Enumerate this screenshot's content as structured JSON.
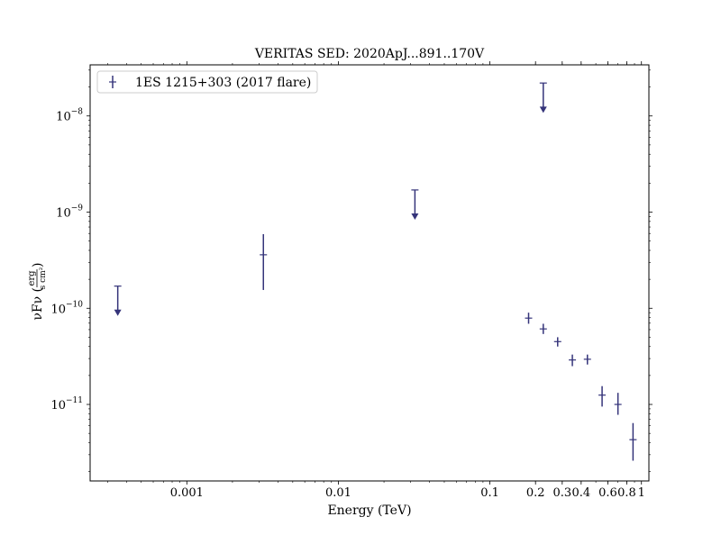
{
  "chart_data": {
    "type": "scatter",
    "title": "VERITAS SED: 2020ApJ...891..170V",
    "xlabel": "Energy (TeV)",
    "ylabel_prefix": "νFν (",
    "ylabel_num": "erg",
    "ylabel_den": "s cm²",
    "ylabel_suffix": ")",
    "xscale": "log",
    "yscale": "log",
    "xlim": [
      0.00023,
      1.12
    ],
    "ylim": [
      1.6e-12,
      3.4e-08
    ],
    "x_ticks": [
      {
        "value": 0.001,
        "label": "0.001"
      },
      {
        "value": 0.01,
        "label": "0.01"
      },
      {
        "value": 0.1,
        "label": "0.1"
      },
      {
        "value": 0.2,
        "label": "0.2"
      },
      {
        "value": 0.3,
        "label": "0.3"
      },
      {
        "value": 0.4,
        "label": "0.4"
      },
      {
        "value": 0.6,
        "label": "0.6"
      },
      {
        "value": 0.8,
        "label": "0.8"
      },
      {
        "value": 1,
        "label": "1"
      }
    ],
    "y_ticks": [
      {
        "value": 1e-11,
        "base": "10",
        "exp": "−11"
      },
      {
        "value": 1e-10,
        "base": "10",
        "exp": "−10"
      },
      {
        "value": 1e-09,
        "base": "10",
        "exp": "−9"
      },
      {
        "value": 1e-08,
        "base": "10",
        "exp": "−8"
      }
    ],
    "grid": false,
    "legend_position": "top-left",
    "series": [
      {
        "name": "1ES 1215+303 (2017 flare)",
        "color": "#35347a",
        "points": [
          {
            "x": 0.00035,
            "y": 1.7e-10,
            "upper_limit": true
          },
          {
            "x": 0.0032,
            "y": 3.6e-10,
            "yerr_low": 1.55e-10,
            "yerr_high": 5.9e-10
          },
          {
            "x": 0.032,
            "y": 1.7e-09,
            "upper_limit": true
          },
          {
            "x": 0.18,
            "y": 7.9e-11,
            "yerr_low": 6.9e-11,
            "yerr_high": 9e-11
          },
          {
            "x": 0.225,
            "y": 6.1e-11,
            "yerr_low": 5.4e-11,
            "yerr_high": 6.9e-11
          },
          {
            "x": 0.225,
            "y": 2.2e-08,
            "upper_limit": true
          },
          {
            "x": 0.28,
            "y": 4.5e-11,
            "yerr_low": 4e-11,
            "yerr_high": 5e-11
          },
          {
            "x": 0.35,
            "y": 2.9e-11,
            "yerr_low": 2.5e-11,
            "yerr_high": 3.3e-11
          },
          {
            "x": 0.44,
            "y": 2.95e-11,
            "yerr_low": 2.6e-11,
            "yerr_high": 3.3e-11
          },
          {
            "x": 0.55,
            "y": 1.25e-11,
            "yerr_low": 9.5e-12,
            "yerr_high": 1.55e-11
          },
          {
            "x": 0.7,
            "y": 1e-11,
            "yerr_low": 7.8e-12,
            "yerr_high": 1.32e-11
          },
          {
            "x": 0.88,
            "y": 4.3e-12,
            "yerr_low": 2.6e-12,
            "yerr_high": 6.4e-12
          }
        ]
      }
    ]
  }
}
